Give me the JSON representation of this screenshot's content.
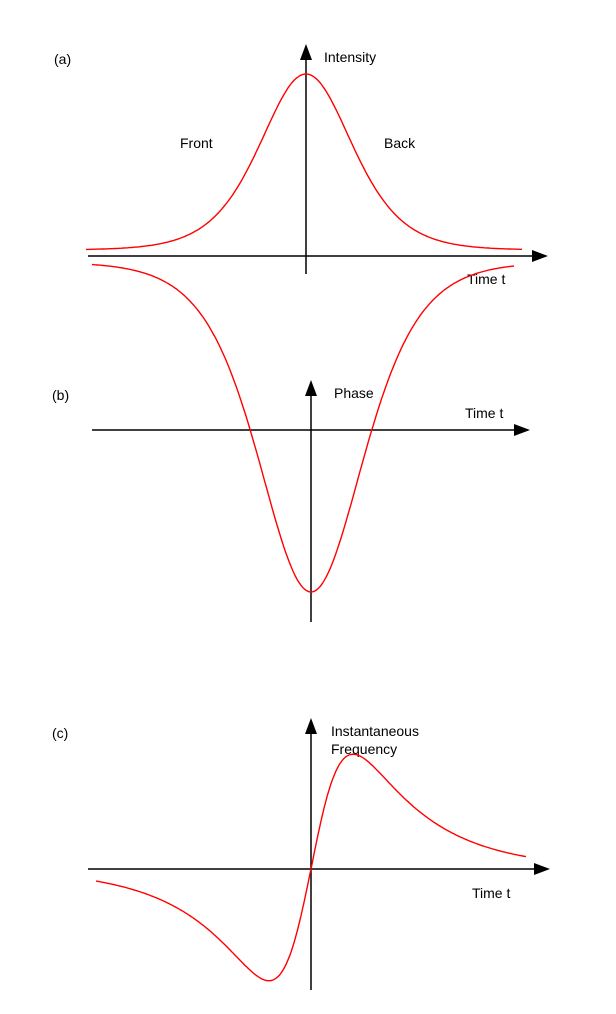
{
  "panels": [
    {
      "id": "a",
      "label": "(a)",
      "y_label": "Intensity",
      "x_label": "Time  t",
      "annotations": [
        "Front",
        "Back"
      ],
      "curve": "peak"
    },
    {
      "id": "b",
      "label": "(b)",
      "y_label": "Phase",
      "x_label": "Time  t",
      "curve": "dip"
    },
    {
      "id": "c",
      "label": "(c)",
      "y_label_lines": [
        "Instantaneous",
        "Frequency"
      ],
      "x_label": "Time  t",
      "curve": "antisymmetric"
    }
  ],
  "colors": {
    "axis": "#000000",
    "curve": "#ff0000"
  }
}
